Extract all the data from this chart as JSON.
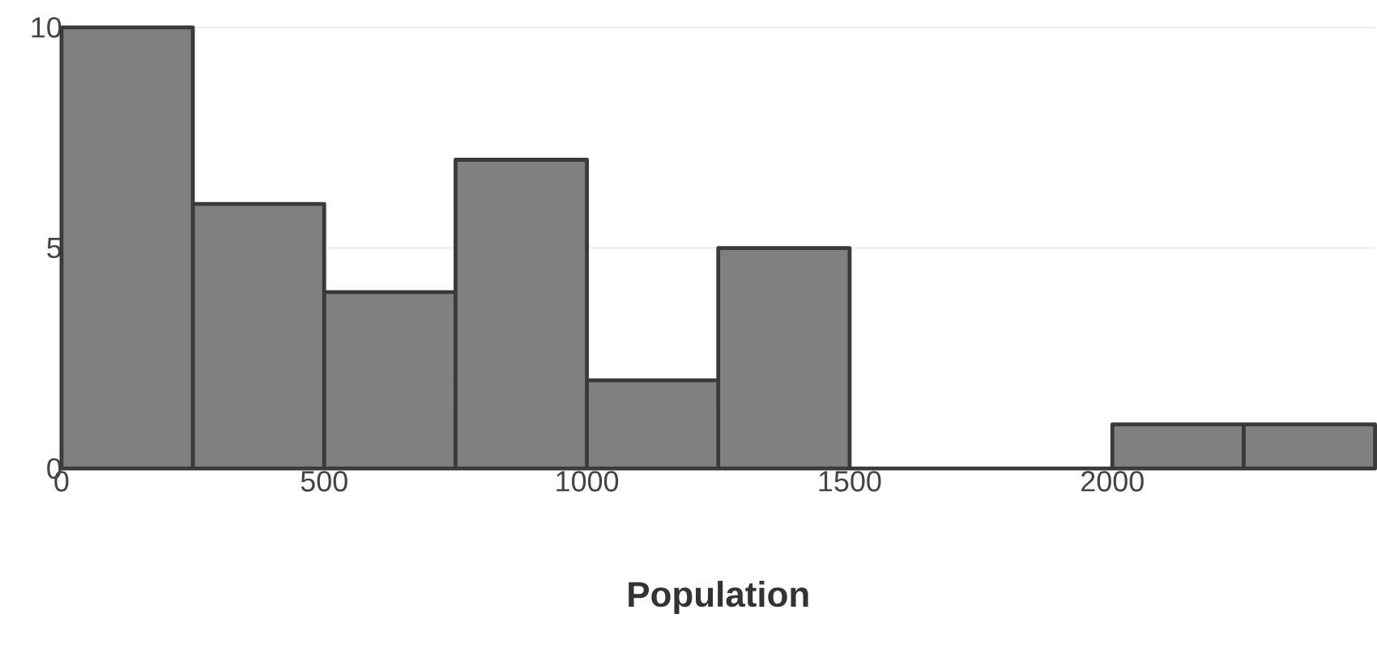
{
  "chart_data": {
    "type": "histogram",
    "xlabel": "Population",
    "bins": [
      0,
      250,
      500,
      750,
      1000,
      1250,
      1500,
      1750,
      2000,
      2250,
      2500
    ],
    "values": [
      10,
      6,
      4,
      7,
      2,
      5,
      0,
      0,
      1,
      1
    ],
    "color": "#808080",
    "xlim": [
      0,
      2500
    ],
    "ylim": [
      0,
      10
    ],
    "xticks": [
      0,
      500,
      1000,
      1500,
      2000
    ],
    "yticks": [
      0,
      5,
      10
    ],
    "grid": "y"
  }
}
